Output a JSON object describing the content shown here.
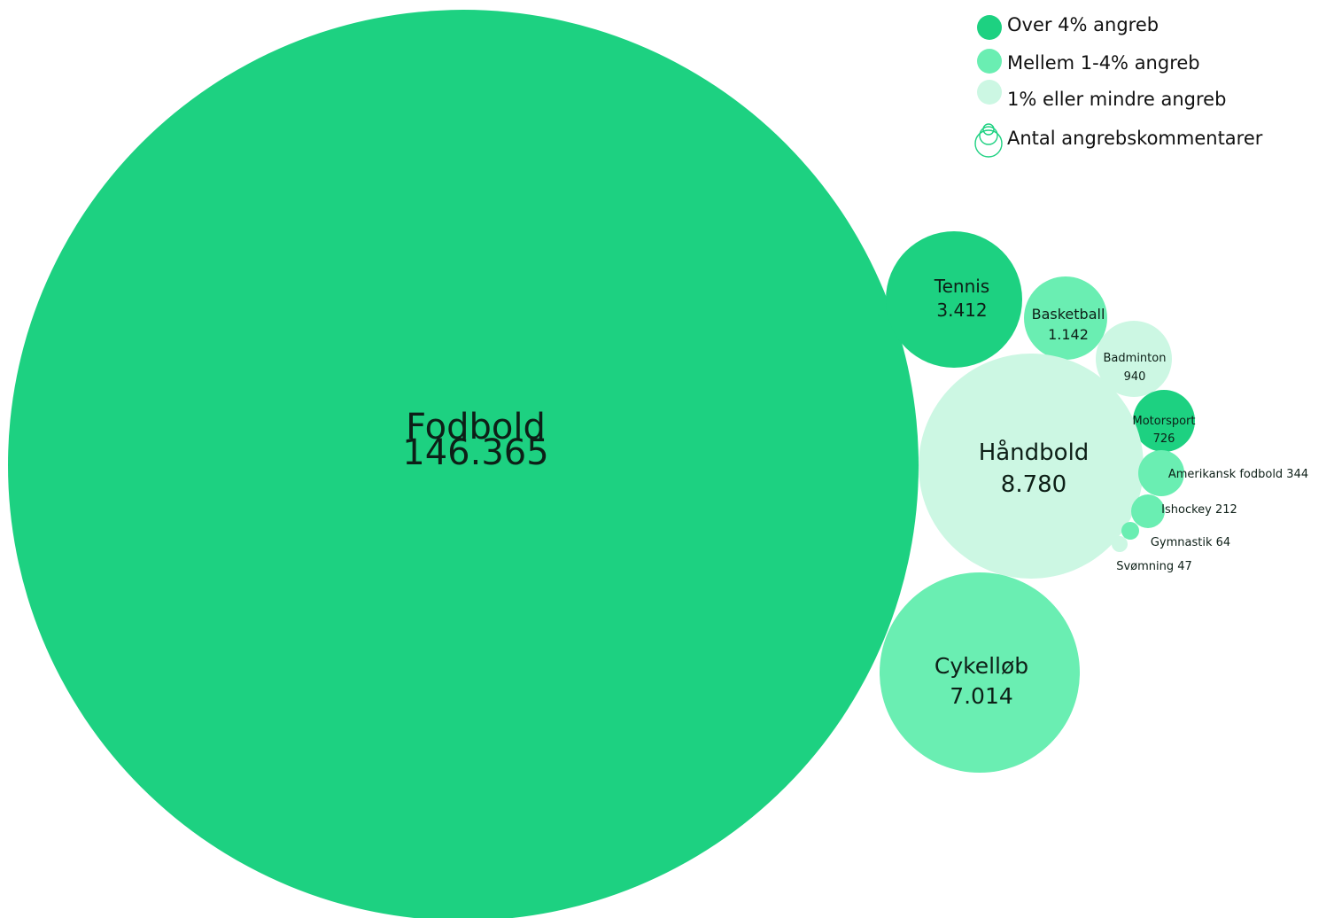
{
  "colors": {
    "high": "#1dd181",
    "mid": "#6aeeb2",
    "low": "#ccf7e3",
    "text": "#0d1f17",
    "legend_outline": "#1dd181"
  },
  "legend": {
    "high_label": "Over 4% angreb",
    "mid_label": "Mellem 1-4% angreb",
    "low_label": "1% eller mindre angreb",
    "size_label": "Antal angrebskommentarer",
    "size_icon": "nested-circles-icon"
  },
  "chart_data": {
    "type": "bubble",
    "value_name": "Antal angrebskommentarer",
    "bubbles": [
      {
        "label": "Fodbold",
        "value_text": "146.365",
        "value": 146365,
        "category": "high"
      },
      {
        "label": "Tennis",
        "value_text": "3.412",
        "value": 3412,
        "category": "high"
      },
      {
        "label": "Basketball",
        "value_text": "1.142",
        "value": 1142,
        "category": "mid"
      },
      {
        "label": "Badminton",
        "value_text": "940",
        "value": 940,
        "category": "low"
      },
      {
        "label": "Motorsport",
        "value_text": "726",
        "value": 726,
        "category": "high"
      },
      {
        "label": "Håndbold",
        "value_text": "8.780",
        "value": 8780,
        "category": "low"
      },
      {
        "label": "Amerikansk fodbold",
        "value_text": "344",
        "value": 344,
        "category": "mid"
      },
      {
        "label": "Ishockey",
        "value_text": "212",
        "value": 212,
        "category": "mid"
      },
      {
        "label": "Gymnastik",
        "value_text": "64",
        "value": 64,
        "category": "mid"
      },
      {
        "label": "Svømning",
        "value_text": "47",
        "value": 47,
        "category": "low"
      },
      {
        "label": "Cykelløb",
        "value_text": "7.014",
        "value": 7014,
        "category": "mid"
      }
    ]
  }
}
